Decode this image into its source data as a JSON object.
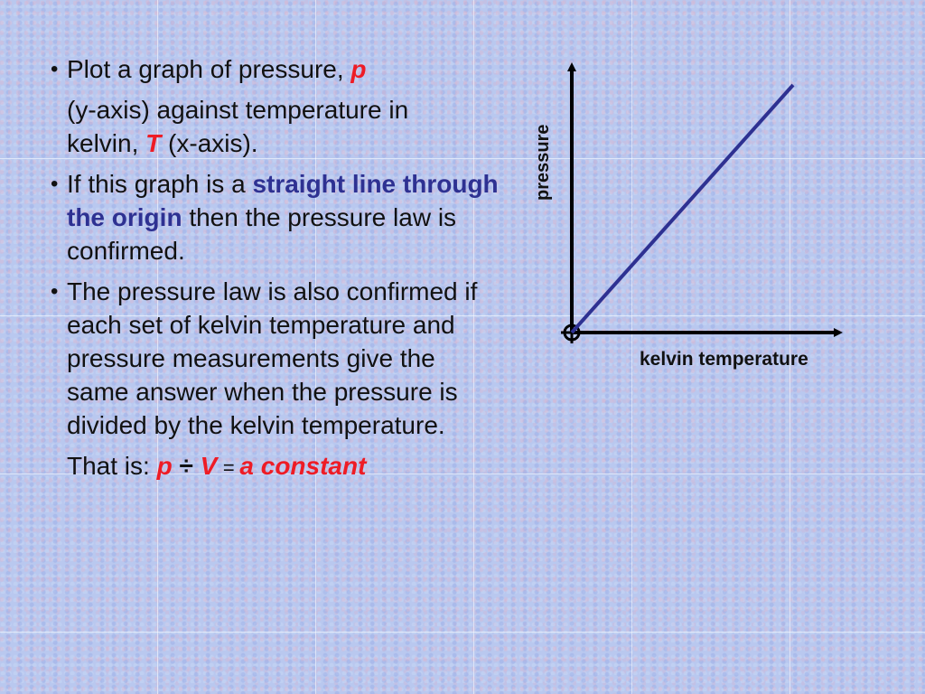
{
  "slide": {
    "bullets": [
      {
        "line1_pre": "Plot a graph of pressure, ",
        "line1_var": "p",
        "line2": "(y-axis) against temperature in",
        "line3_pre": "kelvin, ",
        "line3_var": "T",
        "line3_post": "  (x-axis)."
      },
      {
        "pre": "If this graph is a ",
        "emph": "straight line through the origin",
        "post": " then the pressure law is confirmed."
      },
      {
        "text": "The pressure law is also confirmed if each set of kelvin temperature and pressure measurements give the same answer when the pressure is divided by the kelvin temperature."
      }
    ],
    "that_is": {
      "label": "That is: ",
      "p": "p",
      "div": " ÷ ",
      "v": "V",
      "eq": " = ",
      "constant": "a constant"
    }
  },
  "graph": {
    "y_axis_label": "pressure",
    "x_axis_label": "kelvin temperature",
    "line_color": "#2e3192",
    "axis_color": "#000000"
  }
}
